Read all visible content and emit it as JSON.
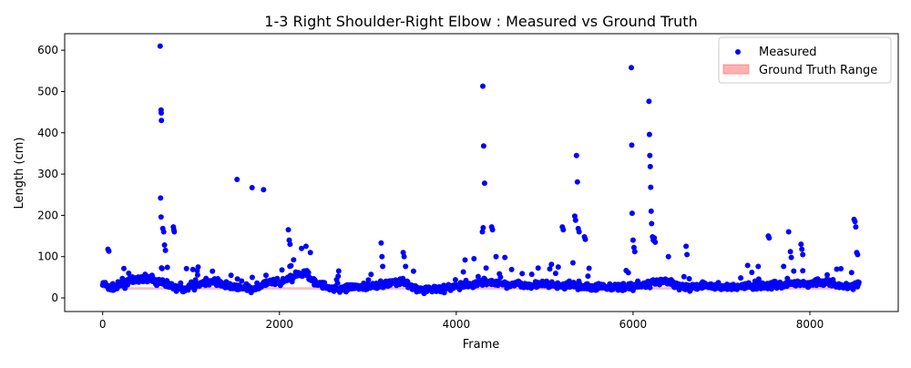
{
  "chart_data": {
    "type": "scatter",
    "title": "1-3 Right Shoulder-Right Elbow : Measured vs Ground Truth",
    "xlabel": "Frame",
    "ylabel": "Length (cm)",
    "xlim": [
      -430,
      9000
    ],
    "ylim": [
      -33,
      640
    ],
    "xticks": [
      0,
      2000,
      4000,
      6000,
      8000
    ],
    "yticks": [
      0,
      100,
      200,
      300,
      400,
      500,
      600
    ],
    "legend_position": "top-right",
    "grid": false,
    "series": [
      {
        "name": "Measured",
        "kind": "scatter",
        "color": "#0000ff",
        "frame_range": [
          0,
          8560
        ],
        "baseline_level": [
          [
            0,
            35
          ],
          [
            100,
            22
          ],
          [
            200,
            30
          ],
          [
            300,
            40
          ],
          [
            400,
            45
          ],
          [
            500,
            48
          ],
          [
            600,
            40
          ],
          [
            700,
            35
          ],
          [
            800,
            28
          ],
          [
            900,
            20
          ],
          [
            1000,
            30
          ],
          [
            1100,
            35
          ],
          [
            1200,
            40
          ],
          [
            1300,
            38
          ],
          [
            1400,
            30
          ],
          [
            1500,
            25
          ],
          [
            1600,
            24
          ],
          [
            1700,
            22
          ],
          [
            1800,
            30
          ],
          [
            1900,
            40
          ],
          [
            2000,
            35
          ],
          [
            2100,
            45
          ],
          [
            2200,
            55
          ],
          [
            2300,
            60
          ],
          [
            2400,
            40
          ],
          [
            2500,
            28
          ],
          [
            2600,
            24
          ],
          [
            2700,
            22
          ],
          [
            2800,
            24
          ],
          [
            2900,
            26
          ],
          [
            3000,
            30
          ],
          [
            3100,
            28
          ],
          [
            3200,
            35
          ],
          [
            3300,
            38
          ],
          [
            3400,
            40
          ],
          [
            3500,
            24
          ],
          [
            3600,
            20
          ],
          [
            3700,
            22
          ],
          [
            3800,
            22
          ],
          [
            3900,
            24
          ],
          [
            4000,
            28
          ],
          [
            4100,
            30
          ],
          [
            4200,
            32
          ],
          [
            4300,
            40
          ],
          [
            4400,
            38
          ],
          [
            4500,
            34
          ],
          [
            4600,
            32
          ],
          [
            4700,
            34
          ],
          [
            4800,
            30
          ],
          [
            4900,
            32
          ],
          [
            5000,
            34
          ],
          [
            5100,
            32
          ],
          [
            5200,
            30
          ],
          [
            5300,
            30
          ],
          [
            5400,
            28
          ],
          [
            5500,
            26
          ],
          [
            5600,
            26
          ],
          [
            5700,
            28
          ],
          [
            5800,
            26
          ],
          [
            5900,
            28
          ],
          [
            6000,
            28
          ],
          [
            6100,
            30
          ],
          [
            6200,
            35
          ],
          [
            6300,
            38
          ],
          [
            6400,
            40
          ],
          [
            6500,
            30
          ],
          [
            6600,
            26
          ],
          [
            6700,
            28
          ],
          [
            6800,
            30
          ],
          [
            6900,
            28
          ],
          [
            7000,
            26
          ],
          [
            7100,
            26
          ],
          [
            7200,
            28
          ],
          [
            7300,
            30
          ],
          [
            7400,
            28
          ],
          [
            7500,
            30
          ],
          [
            7600,
            32
          ],
          [
            7700,
            30
          ],
          [
            7800,
            34
          ],
          [
            7900,
            36
          ],
          [
            8000,
            35
          ],
          [
            8100,
            40
          ],
          [
            8200,
            35
          ],
          [
            8300,
            30
          ],
          [
            8400,
            28
          ],
          [
            8500,
            30
          ],
          [
            8560,
            35
          ]
        ],
        "scatter_spread": 14,
        "outliers": [
          [
            650,
            610
          ],
          [
            660,
            455
          ],
          [
            662,
            448
          ],
          [
            665,
            430
          ],
          [
            655,
            242
          ],
          [
            660,
            196
          ],
          [
            680,
            168
          ],
          [
            690,
            160
          ],
          [
            700,
            128
          ],
          [
            710,
            115
          ],
          [
            800,
            172
          ],
          [
            805,
            165
          ],
          [
            810,
            160
          ],
          [
            60,
            118
          ],
          [
            70,
            113
          ],
          [
            1520,
            287
          ],
          [
            1690,
            267
          ],
          [
            1820,
            262
          ],
          [
            2100,
            165
          ],
          [
            2110,
            140
          ],
          [
            2120,
            130
          ],
          [
            2250,
            120
          ],
          [
            2300,
            125
          ],
          [
            2350,
            110
          ],
          [
            3150,
            133
          ],
          [
            3160,
            100
          ],
          [
            3400,
            110
          ],
          [
            3410,
            100
          ],
          [
            4300,
            513
          ],
          [
            4310,
            368
          ],
          [
            4320,
            278
          ],
          [
            4305,
            170
          ],
          [
            4295,
            160
          ],
          [
            4400,
            172
          ],
          [
            4410,
            165
          ],
          [
            4200,
            95
          ],
          [
            4100,
            92
          ],
          [
            4450,
            100
          ],
          [
            4550,
            98
          ],
          [
            5200,
            172
          ],
          [
            5210,
            165
          ],
          [
            5340,
            198
          ],
          [
            5350,
            188
          ],
          [
            5360,
            345
          ],
          [
            5370,
            281
          ],
          [
            5380,
            168
          ],
          [
            5390,
            160
          ],
          [
            5450,
            148
          ],
          [
            5460,
            142
          ],
          [
            5320,
            85
          ],
          [
            5980,
            558
          ],
          [
            5985,
            370
          ],
          [
            5990,
            205
          ],
          [
            6000,
            140
          ],
          [
            6010,
            122
          ],
          [
            6020,
            112
          ],
          [
            6180,
            476
          ],
          [
            6185,
            396
          ],
          [
            6190,
            345
          ],
          [
            6195,
            318
          ],
          [
            6200,
            268
          ],
          [
            6205,
            210
          ],
          [
            6210,
            180
          ],
          [
            6220,
            148
          ],
          [
            6230,
            140
          ],
          [
            6240,
            145
          ],
          [
            6250,
            135
          ],
          [
            6600,
            125
          ],
          [
            6610,
            105
          ],
          [
            6400,
            100
          ],
          [
            7530,
            150
          ],
          [
            7540,
            145
          ],
          [
            7760,
            160
          ],
          [
            7780,
            112
          ],
          [
            7790,
            98
          ],
          [
            7900,
            130
          ],
          [
            7910,
            118
          ],
          [
            7920,
            105
          ],
          [
            8500,
            190
          ],
          [
            8510,
            185
          ],
          [
            8520,
            172
          ],
          [
            8530,
            110
          ],
          [
            8540,
            105
          ]
        ]
      },
      {
        "name": "Ground Truth Range",
        "kind": "band",
        "color": "#ff6666",
        "x_range": [
          0,
          8560
        ],
        "y_range": [
          20,
          26
        ]
      }
    ]
  }
}
